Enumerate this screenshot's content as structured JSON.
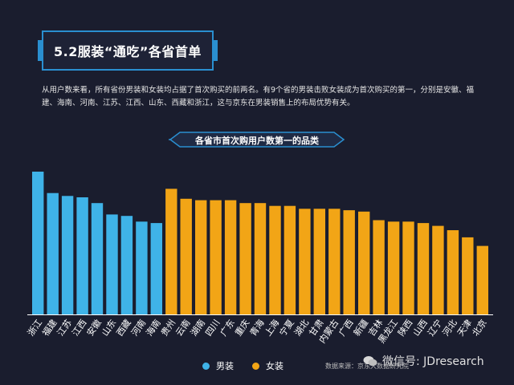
{
  "header": {
    "title": "5.2服装“通吃”各省首单",
    "description": "从用户数来看，所有省份男装和女装均占据了首次购买的前两名。有9个省的男装击败女装成为首次购买的第一，分别是安徽、福建、海南、河南、江苏、江西、山东、西藏和浙江，这与京东在男装销售上的布局优势有关。"
  },
  "banner": {
    "label": "各省市首次购用户数第一的品类"
  },
  "chart_data": {
    "type": "bar",
    "title": "各省市首次购用户数第一的品类",
    "categories": [
      "浙江",
      "福建",
      "江苏",
      "江西",
      "安徽",
      "山东",
      "西藏",
      "河南",
      "海南",
      "贵州",
      "云南",
      "湖南",
      "四川",
      "广东",
      "重庆",
      "青海",
      "上海",
      "宁夏",
      "湖北",
      "甘肃",
      "内蒙古",
      "广西",
      "新疆",
      "吉林",
      "黑龙江",
      "陕西",
      "山西",
      "辽宁",
      "河北",
      "天津",
      "北京"
    ],
    "values": [
      100,
      85,
      83,
      82,
      78,
      70,
      69,
      65,
      64,
      88,
      81,
      80,
      80,
      80,
      78,
      78,
      76,
      76,
      74,
      74,
      74,
      73,
      72,
      66,
      65,
      65,
      64,
      62,
      59,
      54,
      48
    ],
    "series_of_category": [
      "男装",
      "男装",
      "男装",
      "男装",
      "男装",
      "男装",
      "男装",
      "男装",
      "男装",
      "女装",
      "女装",
      "女装",
      "女装",
      "女装",
      "女装",
      "女装",
      "女装",
      "女装",
      "女装",
      "女装",
      "女装",
      "女装",
      "女装",
      "女装",
      "女装",
      "女装",
      "女装",
      "女装",
      "女装",
      "女装",
      "女装"
    ],
    "series": [
      {
        "name": "男装",
        "color": "#3fb3e8"
      },
      {
        "name": "女装",
        "color": "#f2a516"
      }
    ],
    "ylim": [
      0,
      100
    ],
    "grid": false,
    "legend": "bottom-center",
    "axis_color": "#ffffff"
  },
  "legend": [
    {
      "label": "男装",
      "color": "#3fb3e8"
    },
    {
      "label": "女装",
      "color": "#f2a516"
    }
  ],
  "source": {
    "label": "数据来源：京东大数据研究院"
  },
  "watermark": {
    "label": "微信号: JDresearch"
  }
}
